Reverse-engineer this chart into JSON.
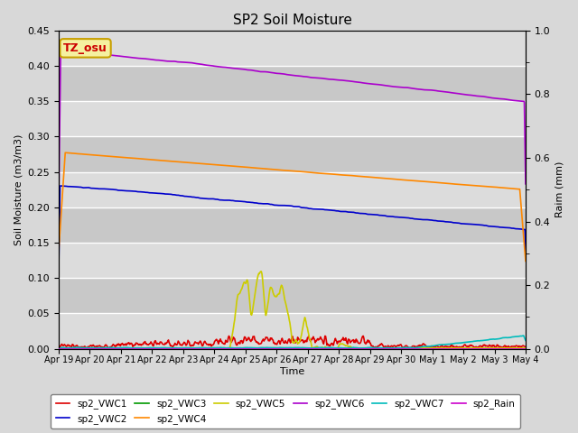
{
  "title": "SP2 Soil Moisture",
  "xlabel": "Time",
  "ylabel_left": "Soil Moisture (m3/m3)",
  "ylabel_right": "Raim (mm)",
  "ylim_left": [
    0,
    0.45
  ],
  "ylim_right": [
    0,
    1.0
  ],
  "fig_bg_color": "#d8d8d8",
  "plot_bg_color": "#e8e8e8",
  "band_colors": [
    "#dcdcdc",
    "#c8c8c8"
  ],
  "annotation_text": "TZ_osu",
  "annotation_bg": "#f5f0a0",
  "annotation_border": "#c8a000",
  "annotation_text_color": "#cc0000",
  "colors": {
    "sp2_VWC1": "#dd0000",
    "sp2_VWC2": "#0000cc",
    "sp2_VWC3": "#009900",
    "sp2_VWC4": "#ff8800",
    "sp2_VWC5": "#cccc00",
    "sp2_VWC6": "#aa00cc",
    "sp2_VWC7": "#00bbbb",
    "sp2_Rain": "#cc00cc"
  },
  "xtick_labels": [
    "Apr 19",
    "Apr 20",
    "Apr 21",
    "Apr 22",
    "Apr 23",
    "Apr 24",
    "Apr 25",
    "Apr 26",
    "Apr 27",
    "Apr 28",
    "Apr 29",
    "Apr 30",
    "May 1",
    "May 2",
    "May 3",
    "May 4"
  ],
  "right_ytick_labels": [
    "0.0",
    "0.2",
    "0.4",
    "0.6",
    "0.8",
    "1.0"
  ],
  "legend_row1": [
    "sp2_VWC1",
    "sp2_VWC2",
    "sp2_VWC3",
    "sp2_VWC4",
    "sp2_VWC5",
    "sp2_VWC6"
  ],
  "legend_row2": [
    "sp2_VWC7",
    "sp2_Rain"
  ]
}
